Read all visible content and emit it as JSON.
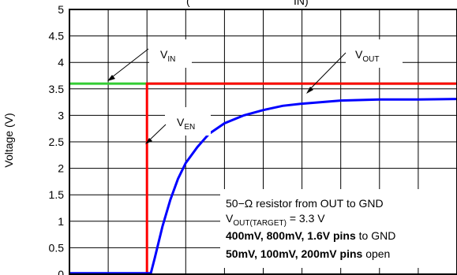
{
  "chart_data": {
    "type": "line",
    "title_partial": "(",
    "title_partial_right": "IN)",
    "ylabel": "Voltage (V)",
    "ylim": [
      0,
      5
    ],
    "yticks": [
      "0",
      "0.5",
      "1",
      "1.5",
      "2",
      "2.5",
      "3",
      "3.5",
      "4",
      "4.5",
      "5"
    ],
    "xticks": [],
    "grid": true,
    "series": [
      {
        "name": "V_IN",
        "color": "#33cc33",
        "description_points": [
          [
            0,
            3.6
          ],
          [
            1,
            3.6
          ]
        ]
      },
      {
        "name": "V_EN",
        "color": "#ff0000",
        "points": [
          [
            0.0,
            0.0
          ],
          [
            0.2,
            0.0
          ],
          [
            0.2,
            3.6
          ],
          [
            1.0,
            3.6
          ]
        ]
      },
      {
        "name": "V_OUT",
        "color": "#0000ff",
        "points": [
          [
            0.0,
            0.02
          ],
          [
            0.21,
            0.02
          ],
          [
            0.22,
            0.3
          ],
          [
            0.24,
            0.9
          ],
          [
            0.26,
            1.4
          ],
          [
            0.28,
            1.8
          ],
          [
            0.3,
            2.1
          ],
          [
            0.33,
            2.4
          ],
          [
            0.36,
            2.65
          ],
          [
            0.4,
            2.85
          ],
          [
            0.45,
            3.0
          ],
          [
            0.5,
            3.1
          ],
          [
            0.55,
            3.18
          ],
          [
            0.6,
            3.22
          ],
          [
            0.65,
            3.25
          ],
          [
            0.7,
            3.28
          ],
          [
            0.8,
            3.3
          ],
          [
            0.9,
            3.3
          ],
          [
            1.0,
            3.31
          ]
        ]
      }
    ],
    "labels": {
      "vin_main": "V",
      "vin_sub": "IN",
      "ven_main": "V",
      "ven_sub": "EN",
      "vout_main": "V",
      "vout_sub": "OUT"
    },
    "annotation": {
      "line1": "50−Ω resistor from OUT to GND",
      "line2_main": "V",
      "line2_sub": "OUT(TARGET)",
      "line2_rest": " = 3.3 V",
      "line3_bold": "400mV, 800mV, 1.6V pins",
      "line3_rest": " to GND",
      "line4_bold": "50mV, 100mV, 200mV pins",
      "line4_rest": " open"
    }
  }
}
